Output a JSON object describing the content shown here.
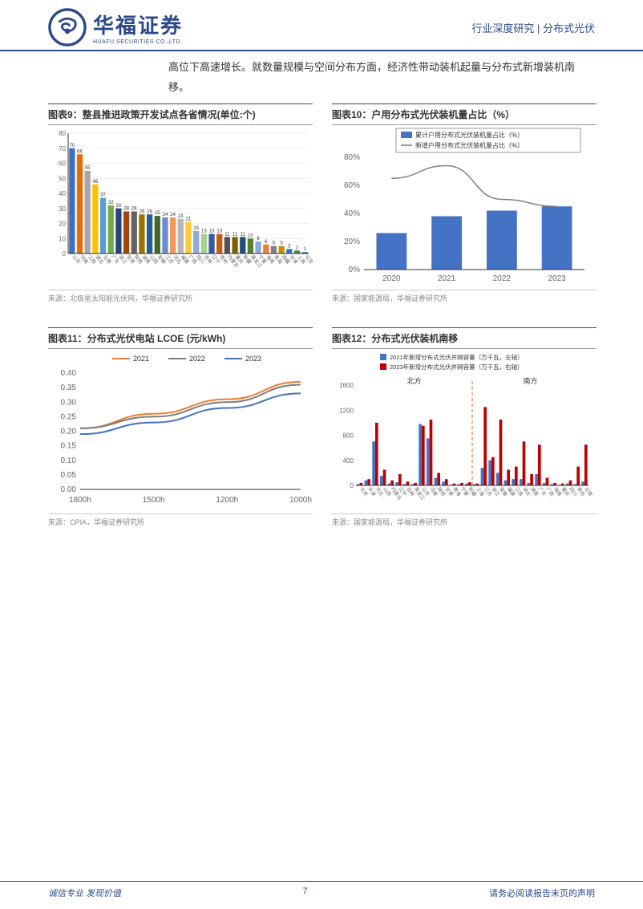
{
  "header": {
    "company_cn": "华福证券",
    "company_en": "HUAFU SECURITIES CO.,LTD.",
    "breadcrumb": "行业深度研究 | 分布式光伏"
  },
  "intro_text": "高位下高速增长。就数量规模与空间分布方面，经济性带动装机起量与分布式新增装机南移。",
  "chart9": {
    "title": "图表9：整县推进政策开发试点各省情况(单位:个)",
    "type": "bar",
    "ylim": [
      0,
      80
    ],
    "ytick_step": 10,
    "categories": [
      "山东",
      "河南",
      "江西",
      "湖北",
      "云南",
      "广东",
      "浙江",
      "甘肃",
      "陕西",
      "湖南",
      "山西",
      "安徽",
      "江苏",
      "河北",
      "福建",
      "广西",
      "四川",
      "吉林",
      "辽宁",
      "贵州",
      "内蒙古",
      "重庆",
      "新疆",
      "黑龙江",
      "宁夏",
      "海南",
      "青海",
      "西藏",
      "天津",
      "上海",
      "北京"
    ],
    "values": [
      70,
      66,
      55,
      46,
      37,
      32,
      30,
      28,
      28,
      26,
      26,
      25,
      24,
      24,
      23,
      21,
      15,
      13,
      13,
      13,
      11,
      11,
      11,
      10,
      8,
      6,
      5,
      5,
      3,
      2,
      1
    ],
    "bar_colors": [
      "#3a6fc4",
      "#e46c0a",
      "#a6a6a6",
      "#ffc000",
      "#5b9bd5",
      "#70ad47",
      "#264478",
      "#9e480e",
      "#636363",
      "#997300",
      "#255e91",
      "#43682b",
      "#698ed0",
      "#f1975a",
      "#b7b7b7",
      "#ffcd33",
      "#8faadc",
      "#a9d18e",
      "#335aa1",
      "#c55a11",
      "#525252",
      "#7f6000",
      "#1f4e79",
      "#548235",
      "#8ea9db",
      "#ed7d31",
      "#808080",
      "#bf9000",
      "#2e75b6",
      "#548235",
      "#4472c4"
    ],
    "axis_color": "#333",
    "grid_color": "#e0e0e0",
    "label_fontsize": 8,
    "source": "来源：北极星太阳能光伏网，华福证券研究所"
  },
  "chart10": {
    "title": "图表10：户用分布式光伏装机量占比（%）",
    "type": "bar_line",
    "ylim": [
      0,
      80
    ],
    "ytick_step": 20,
    "y_suffix": "%",
    "categories": [
      "2020",
      "2021",
      "2022",
      "2023"
    ],
    "bar_series": {
      "label": "累计户用分布式光伏装机量占比（%）",
      "values": [
        26,
        38,
        42,
        45
      ],
      "color": "#4472c4"
    },
    "line_series": {
      "label": "新增户用分布式光伏装机量占比（%）",
      "values": [
        65,
        74,
        50,
        45
      ],
      "color": "#7f7f7f"
    },
    "legend_box_border": "#333",
    "axis_color": "#333",
    "label_fontsize": 10,
    "source": "来源：国家能源局，华福证券研究所"
  },
  "chart11": {
    "title": "图表11：分布式光伏电站 LCOE (元/kWh)",
    "type": "line",
    "ylim": [
      0,
      0.4
    ],
    "ytick_step": 0.05,
    "categories": [
      "1800h",
      "1500h",
      "1200h",
      "1000h"
    ],
    "series": [
      {
        "label": "2021",
        "color": "#ed7d31",
        "values": [
          0.21,
          0.26,
          0.31,
          0.37
        ]
      },
      {
        "label": "2022",
        "color": "#7f7f7f",
        "values": [
          0.21,
          0.25,
          0.3,
          0.36
        ]
      },
      {
        "label": "2023",
        "color": "#4472c4",
        "values": [
          0.19,
          0.23,
          0.28,
          0.33
        ]
      }
    ],
    "legend_border": "#333",
    "axis_color": "#333",
    "label_fontsize": 10,
    "source": "来源：CPIA，华福证券研究所"
  },
  "chart12": {
    "title": "图表12：分布式光伏装机南移",
    "type": "grouped_bar",
    "ylim": [
      0,
      1600
    ],
    "ytick_step": 400,
    "categories": [
      "北京",
      "天津",
      "河北",
      "山西",
      "内蒙古",
      "辽宁",
      "吉林",
      "黑龙江",
      "山东",
      "河南",
      "陕西",
      "甘肃",
      "青海",
      "宁夏",
      "新疆",
      "上海",
      "江苏",
      "浙江",
      "安徽",
      "福建",
      "江西",
      "湖北",
      "湖南",
      "广东",
      "广西",
      "海南",
      "重庆",
      "四川",
      "贵州",
      "云南"
    ],
    "north_label": "北方",
    "south_label": "南方",
    "divider_index": 15,
    "series": [
      {
        "label": "2021年新增分布式光伏并网容量（万千瓦，左轴）",
        "color": "#4472c4",
        "values": [
          20,
          80,
          700,
          150,
          30,
          50,
          20,
          20,
          980,
          750,
          120,
          60,
          10,
          20,
          30,
          20,
          280,
          400,
          200,
          80,
          100,
          100,
          40,
          180,
          40,
          20,
          10,
          30,
          20,
          60
        ]
      },
      {
        "label": "2023年新增分布式光伏并网容量（万千瓦，右轴）",
        "color": "#c00000",
        "values": [
          40,
          100,
          1000,
          250,
          80,
          180,
          60,
          40,
          950,
          1050,
          200,
          100,
          30,
          40,
          50,
          30,
          1250,
          450,
          1050,
          250,
          300,
          700,
          180,
          650,
          120,
          40,
          30,
          80,
          300,
          650
        ]
      }
    ],
    "divider_color": "#ed7d31",
    "axis_color": "#333",
    "label_fontsize": 7,
    "source": "来源：国家能源局，华福证券研究所"
  },
  "footer": {
    "left": "诚信专业  发现价值",
    "page": "7",
    "right": "请务必阅读报告末页的声明"
  }
}
